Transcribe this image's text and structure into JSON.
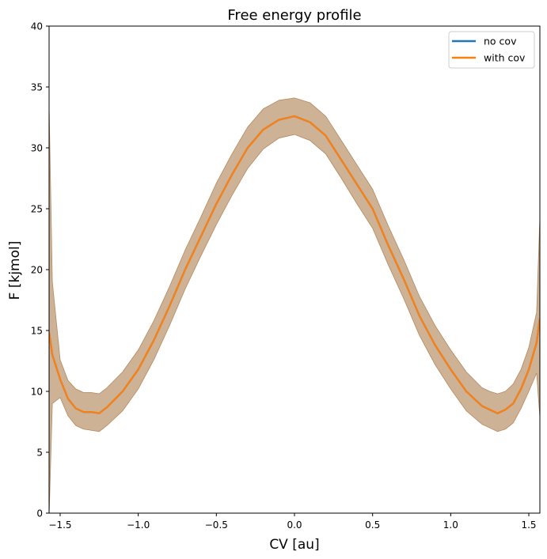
{
  "chart_data": {
    "type": "line",
    "title": "Free energy profile",
    "xlabel": "CV [au]",
    "ylabel": "F [kjmol]",
    "xlim": [
      -1.5708,
      1.5708
    ],
    "ylim": [
      0,
      40
    ],
    "xticks": [
      -1.5,
      -1.0,
      -0.5,
      0.0,
      0.5,
      1.0,
      1.5
    ],
    "xtick_labels": [
      "−1.5",
      "−1.0",
      "−0.5",
      "0.0",
      "0.5",
      "1.0",
      "1.5"
    ],
    "yticks": [
      0,
      5,
      10,
      15,
      20,
      25,
      30,
      35,
      40
    ],
    "ytick_labels": [
      "0",
      "5",
      "10",
      "15",
      "20",
      "25",
      "30",
      "35",
      "40"
    ],
    "grid": false,
    "legend": {
      "placement": "top-right",
      "entries": [
        "no cov",
        "with cov"
      ]
    },
    "x": [
      -1.57,
      -1.55,
      -1.5,
      -1.45,
      -1.4,
      -1.35,
      -1.3,
      -1.25,
      -1.2,
      -1.1,
      -1.0,
      -0.9,
      -0.8,
      -0.7,
      -0.6,
      -0.5,
      -0.4,
      -0.3,
      -0.2,
      -0.1,
      0.0,
      0.1,
      0.2,
      0.3,
      0.4,
      0.5,
      0.6,
      0.7,
      0.8,
      0.9,
      1.0,
      1.1,
      1.2,
      1.25,
      1.3,
      1.35,
      1.4,
      1.45,
      1.5,
      1.55,
      1.57
    ],
    "series": [
      {
        "name": "no cov",
        "color": "#1f77b4",
        "values": [
          14.8,
          13.0,
          11.0,
          9.4,
          8.6,
          8.3,
          8.3,
          8.2,
          8.7,
          10.0,
          11.8,
          14.2,
          17.0,
          20.0,
          22.7,
          25.4,
          27.8,
          30.0,
          31.5,
          32.3,
          32.6,
          32.1,
          31.0,
          29.0,
          27.0,
          25.0,
          22.0,
          19.2,
          16.2,
          13.8,
          11.8,
          10.0,
          8.8,
          8.5,
          8.2,
          8.5,
          9.0,
          10.2,
          11.8,
          14.0,
          16.0
        ]
      },
      {
        "name": "with cov",
        "color": "#ff7f0e",
        "values": [
          14.8,
          13.0,
          11.0,
          9.4,
          8.6,
          8.3,
          8.3,
          8.2,
          8.7,
          10.0,
          11.8,
          14.2,
          17.0,
          20.0,
          22.7,
          25.4,
          27.8,
          30.0,
          31.5,
          32.3,
          32.6,
          32.1,
          31.0,
          29.0,
          27.0,
          25.0,
          22.0,
          19.2,
          16.2,
          13.8,
          11.8,
          10.0,
          8.8,
          8.5,
          8.2,
          8.5,
          9.0,
          10.2,
          11.8,
          14.0,
          16.0
        ]
      }
    ],
    "band": {
      "color": "#b4895e",
      "lower": [
        0.0,
        9.0,
        9.5,
        8.0,
        7.2,
        6.9,
        6.8,
        6.7,
        7.2,
        8.4,
        10.2,
        12.6,
        15.4,
        18.4,
        21.1,
        23.7,
        26.1,
        28.3,
        29.9,
        30.8,
        31.1,
        30.6,
        29.5,
        27.5,
        25.4,
        23.4,
        20.4,
        17.6,
        14.6,
        12.2,
        10.2,
        8.4,
        7.3,
        7.0,
        6.7,
        6.9,
        7.4,
        8.6,
        10.0,
        11.5,
        8.0
      ],
      "upper": [
        33.0,
        19.0,
        12.6,
        10.9,
        10.2,
        9.9,
        9.9,
        9.8,
        10.3,
        11.6,
        13.4,
        15.8,
        18.6,
        21.6,
        24.3,
        27.1,
        29.5,
        31.7,
        33.2,
        33.9,
        34.1,
        33.7,
        32.6,
        30.6,
        28.6,
        26.6,
        23.6,
        20.8,
        17.8,
        15.4,
        13.4,
        11.6,
        10.3,
        10.0,
        9.8,
        10.0,
        10.6,
        11.8,
        13.6,
        16.5,
        24.0
      ]
    }
  }
}
